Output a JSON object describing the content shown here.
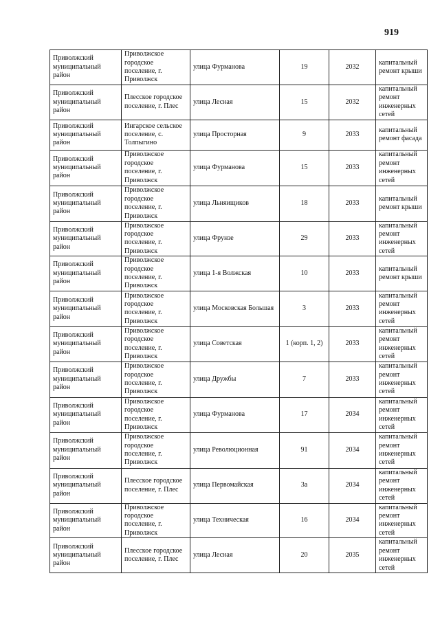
{
  "page_number": "919",
  "rows": [
    {
      "district": "Приволжский муниципальный район",
      "settlement": "Приволжское городское поселение, г. Приволжск",
      "street": "улица Фурманова",
      "house": "19",
      "year": "2032",
      "work": "капитальный ремонт крыши"
    },
    {
      "district": "Приволжский муниципальный район",
      "settlement": "Плесское городское поселение, г. Плес",
      "street": "улица Лесная",
      "house": "15",
      "year": "2032",
      "work": "капитальный ремонт инженерных сетей"
    },
    {
      "district": "Приволжский муниципальный район",
      "settlement": "Ингарское сельское поселение, с. Толпыгино",
      "street": "улица Просторная",
      "house": "9",
      "year": "2033",
      "work": "капитальный ремонт фасада"
    },
    {
      "district": "Приволжский муниципальный район",
      "settlement": "Приволжское городское поселение, г. Приволжск",
      "street": "улица Фурманова",
      "house": "15",
      "year": "2033",
      "work": "капитальный ремонт инженерных сетей"
    },
    {
      "district": "Приволжский муниципальный район",
      "settlement": "Приволжское городское поселение, г. Приволжск",
      "street": "улица Льняищиков",
      "house": "18",
      "year": "2033",
      "work": "капитальный ремонт крыши"
    },
    {
      "district": "Приволжский муниципальный район",
      "settlement": "Приволжское городское поселение, г. Приволжск",
      "street": "улица Фрунзе",
      "house": "29",
      "year": "2033",
      "work": "капитальный ремонт инженерных сетей"
    },
    {
      "district": "Приволжский муниципальный район",
      "settlement": "Приволжское городское поселение, г. Приволжск",
      "street": "улица 1-я Волжская",
      "house": "10",
      "year": "2033",
      "work": "капитальный ремонт крыши"
    },
    {
      "district": "Приволжский муниципальный район",
      "settlement": "Приволжское городское поселение, г. Приволжск",
      "street": "улица Московская Большая",
      "house": "3",
      "year": "2033",
      "work": "капитальный ремонт инженерных сетей"
    },
    {
      "district": "Приволжский муниципальный район",
      "settlement": "Приволжское городское поселение, г. Приволжск",
      "street": "улица Советская",
      "house": "1 (корп. 1, 2)",
      "year": "2033",
      "work": "капитальный ремонт инженерных сетей"
    },
    {
      "district": "Приволжский муниципальный район",
      "settlement": "Приволжское городское поселение, г. Приволжск",
      "street": "улица Дружбы",
      "house": "7",
      "year": "2033",
      "work": "капитальный ремонт инженерных сетей"
    },
    {
      "district": "Приволжский муниципальный район",
      "settlement": "Приволжское городское поселение, г. Приволжск",
      "street": "улица Фурманова",
      "house": "17",
      "year": "2034",
      "work": "капитальный ремонт инженерных сетей"
    },
    {
      "district": "Приволжский муниципальный район",
      "settlement": "Приволжское городское поселение, г. Приволжск",
      "street": "улица Революционная",
      "house": "91",
      "year": "2034",
      "work": "капитальный ремонт инженерных сетей"
    },
    {
      "district": "Приволжский муниципальный район",
      "settlement": "Плесское городское поселение, г. Плес",
      "street": "улица Первомайская",
      "house": "3а",
      "year": "2034",
      "work": "капитальный ремонт инженерных сетей"
    },
    {
      "district": "Приволжский муниципальный район",
      "settlement": "Приволжское городское поселение, г. Приволжск",
      "street": "улица Техническая",
      "house": "16",
      "year": "2034",
      "work": "капитальный ремонт инженерных сетей"
    },
    {
      "district": "Приволжский муниципальный район",
      "settlement": "Плесское городское поселение, г. Плес",
      "street": "улица Лесная",
      "house": "20",
      "year": "2035",
      "work": "капитальный ремонт инженерных сетей"
    }
  ]
}
